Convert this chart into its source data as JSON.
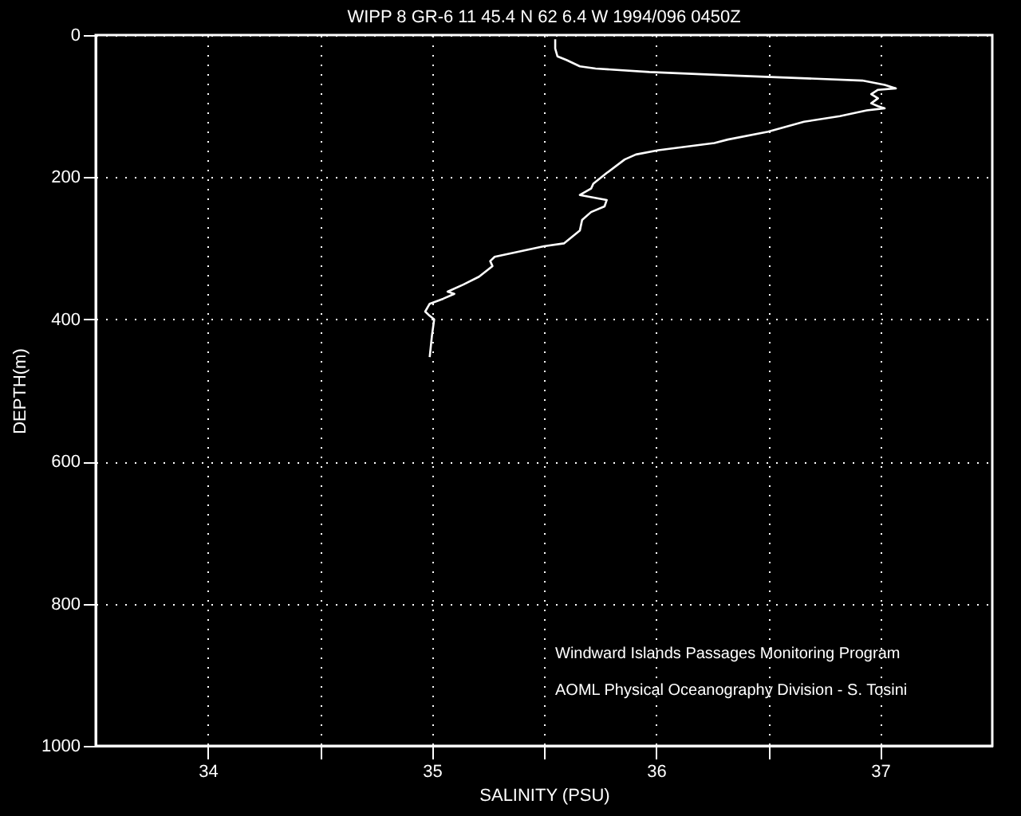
{
  "chart_data": {
    "type": "line",
    "title": "WIPP 8 GR-6   11 45.4 N   62   6.4 W   1994/096 0450Z",
    "xlabel": "SALINITY (PSU)",
    "ylabel": "DEPTH(m)",
    "annotations": [
      "Windward Islands Passages Monitoring Program",
      "AOML Physical Oceanography Division - S. Tosini"
    ],
    "xlim": [
      33.5,
      37.5
    ],
    "xticks": [
      34,
      {
        "value": 34.5,
        "label": null
      },
      35,
      {
        "value": 35.5,
        "label": null
      },
      36,
      {
        "value": 36.5,
        "label": null
      },
      37
    ],
    "ylim": [
      1000,
      0
    ],
    "yticks": [
      0,
      200,
      400,
      600,
      800,
      1000
    ],
    "grid": true,
    "line_style": "solid",
    "series": [
      {
        "color": "#ffffff",
        "x": [
          35.55,
          35.55,
          35.56,
          35.6,
          35.66,
          35.73,
          35.97,
          36.35,
          36.92,
          37.02,
          37.07,
          36.99,
          36.96,
          36.99,
          36.96,
          36.99,
          37.02,
          36.94,
          36.82,
          36.66,
          36.5,
          36.32,
          36.26,
          36.01,
          35.91,
          35.86,
          35.78,
          35.72,
          35.71,
          35.66,
          35.78,
          35.77,
          35.71,
          35.67,
          35.66,
          35.59,
          35.5,
          35.28,
          35.26,
          35.27,
          35.21,
          35.14,
          35.07,
          35.1,
          35.05,
          34.99,
          34.97,
          34.99,
          35.01,
          35.0,
          34.99
        ],
        "values": [
          6,
          19,
          30,
          35,
          44,
          47,
          52,
          57,
          64,
          70,
          75,
          77,
          83,
          89,
          96,
          100,
          103,
          106,
          114,
          122,
          136,
          147,
          152,
          162,
          168,
          175,
          194,
          209,
          216,
          225,
          232,
          241,
          249,
          260,
          275,
          293,
          297,
          312,
          318,
          325,
          340,
          351,
          361,
          364,
          371,
          378,
          389,
          395,
          400,
          423,
          453
        ]
      }
    ]
  }
}
